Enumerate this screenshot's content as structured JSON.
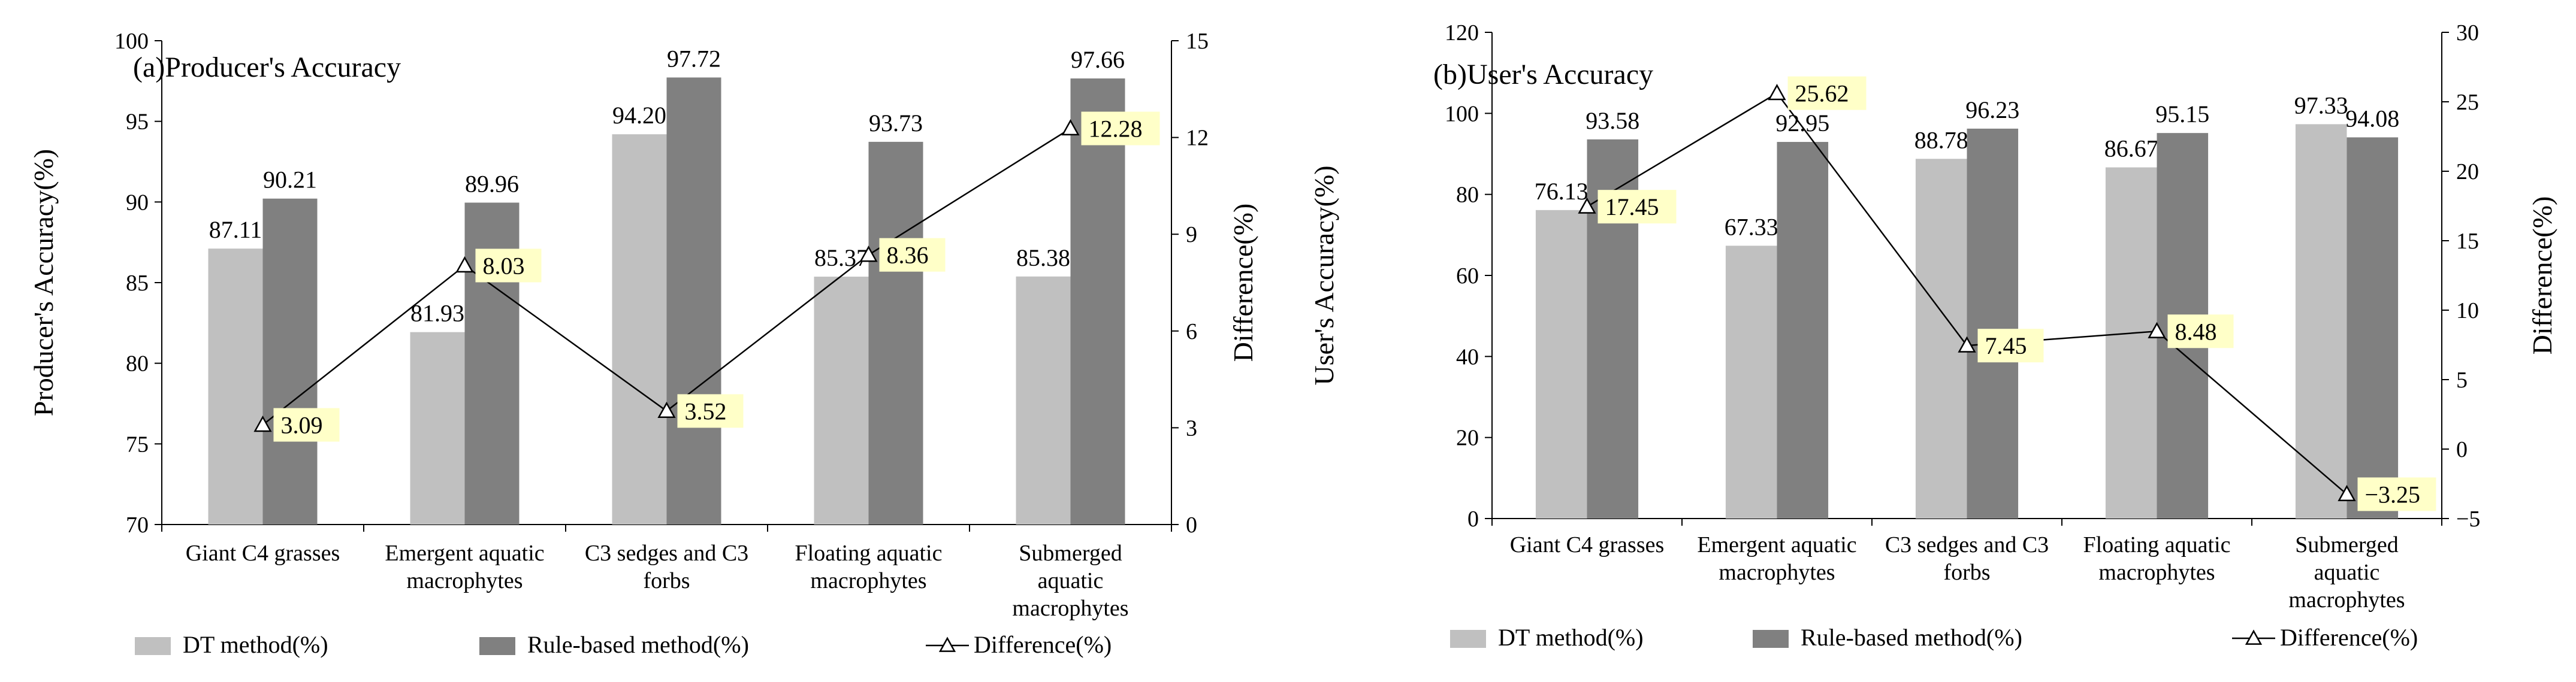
{
  "chart_data": [
    {
      "type": "bar",
      "title": "(a)Producer's Accuracy",
      "ylabel": "Producer's Accuracy(%)",
      "y2label": "Difference(%)",
      "ylim": [
        70,
        100
      ],
      "yticks": [
        70,
        75,
        80,
        85,
        90,
        95,
        100
      ],
      "y2lim": [
        0,
        15
      ],
      "y2ticks": [
        0,
        3,
        6,
        9,
        12,
        15
      ],
      "categories": [
        [
          "Giant C4 grasses"
        ],
        [
          "Emergent aquatic",
          "macrophytes"
        ],
        [
          "C3 sedges and C3",
          "forbs"
        ],
        [
          "Floating aquatic",
          "macrophytes"
        ],
        [
          "Submerged",
          "aquatic",
          "macrophytes"
        ]
      ],
      "series": [
        {
          "name": "DT method(%)",
          "kind": "bar",
          "color": "#c0c0c0",
          "values": [
            87.11,
            81.93,
            94.2,
            85.37,
            85.38
          ],
          "labels": [
            "87.11",
            "81.93",
            "94.20",
            "85.37",
            "85.38"
          ]
        },
        {
          "name": "Rule-based method(%)",
          "kind": "bar",
          "color": "#808080",
          "values": [
            90.21,
            89.96,
            97.72,
            93.73,
            97.66
          ],
          "labels": [
            "90.21",
            "89.96",
            "97.72",
            "93.73",
            "97.66"
          ]
        },
        {
          "name": "Difference(%)",
          "kind": "line",
          "axis": "right",
          "values": [
            3.09,
            8.03,
            3.52,
            8.36,
            12.28
          ],
          "labels": [
            "3.09",
            "8.03",
            "3.52",
            "8.36",
            "12.28"
          ]
        }
      ],
      "grid": false,
      "legend_position": "bottom"
    },
    {
      "type": "bar",
      "title": "(b)User's Accuracy",
      "ylabel": "User's Accuracy(%)",
      "y2label": "Difference(%)",
      "ylim": [
        0,
        120
      ],
      "yticks": [
        0,
        20,
        40,
        60,
        80,
        100,
        120
      ],
      "y2lim": [
        -5,
        30
      ],
      "y2ticks": [
        -5,
        0,
        5,
        10,
        15,
        20,
        25,
        30
      ],
      "categories": [
        [
          "Giant C4 grasses"
        ],
        [
          "Emergent aquatic",
          "macrophytes"
        ],
        [
          "C3 sedges and C3",
          "forbs"
        ],
        [
          "Floating aquatic",
          "macrophytes"
        ],
        [
          "Submerged",
          "aquatic",
          "macrophytes"
        ]
      ],
      "series": [
        {
          "name": "DT method(%)",
          "kind": "bar",
          "color": "#c0c0c0",
          "values": [
            76.13,
            67.33,
            88.78,
            86.67,
            97.33
          ],
          "labels": [
            "76.13",
            "67.33",
            "88.78",
            "86.67",
            "97.33"
          ]
        },
        {
          "name": "Rule-based method(%)",
          "kind": "bar",
          "color": "#808080",
          "values": [
            93.58,
            92.95,
            96.23,
            95.15,
            94.08
          ],
          "labels": [
            "93.58",
            "92.95",
            "96.23",
            "95.15",
            "94.08"
          ]
        },
        {
          "name": "Difference(%)",
          "kind": "line",
          "axis": "right",
          "values": [
            17.45,
            25.62,
            7.45,
            8.48,
            -3.25
          ],
          "labels": [
            "17.45",
            "25.62",
            "7.45",
            "8.48",
            "−3.25"
          ]
        }
      ],
      "grid": false,
      "legend_position": "bottom"
    }
  ]
}
